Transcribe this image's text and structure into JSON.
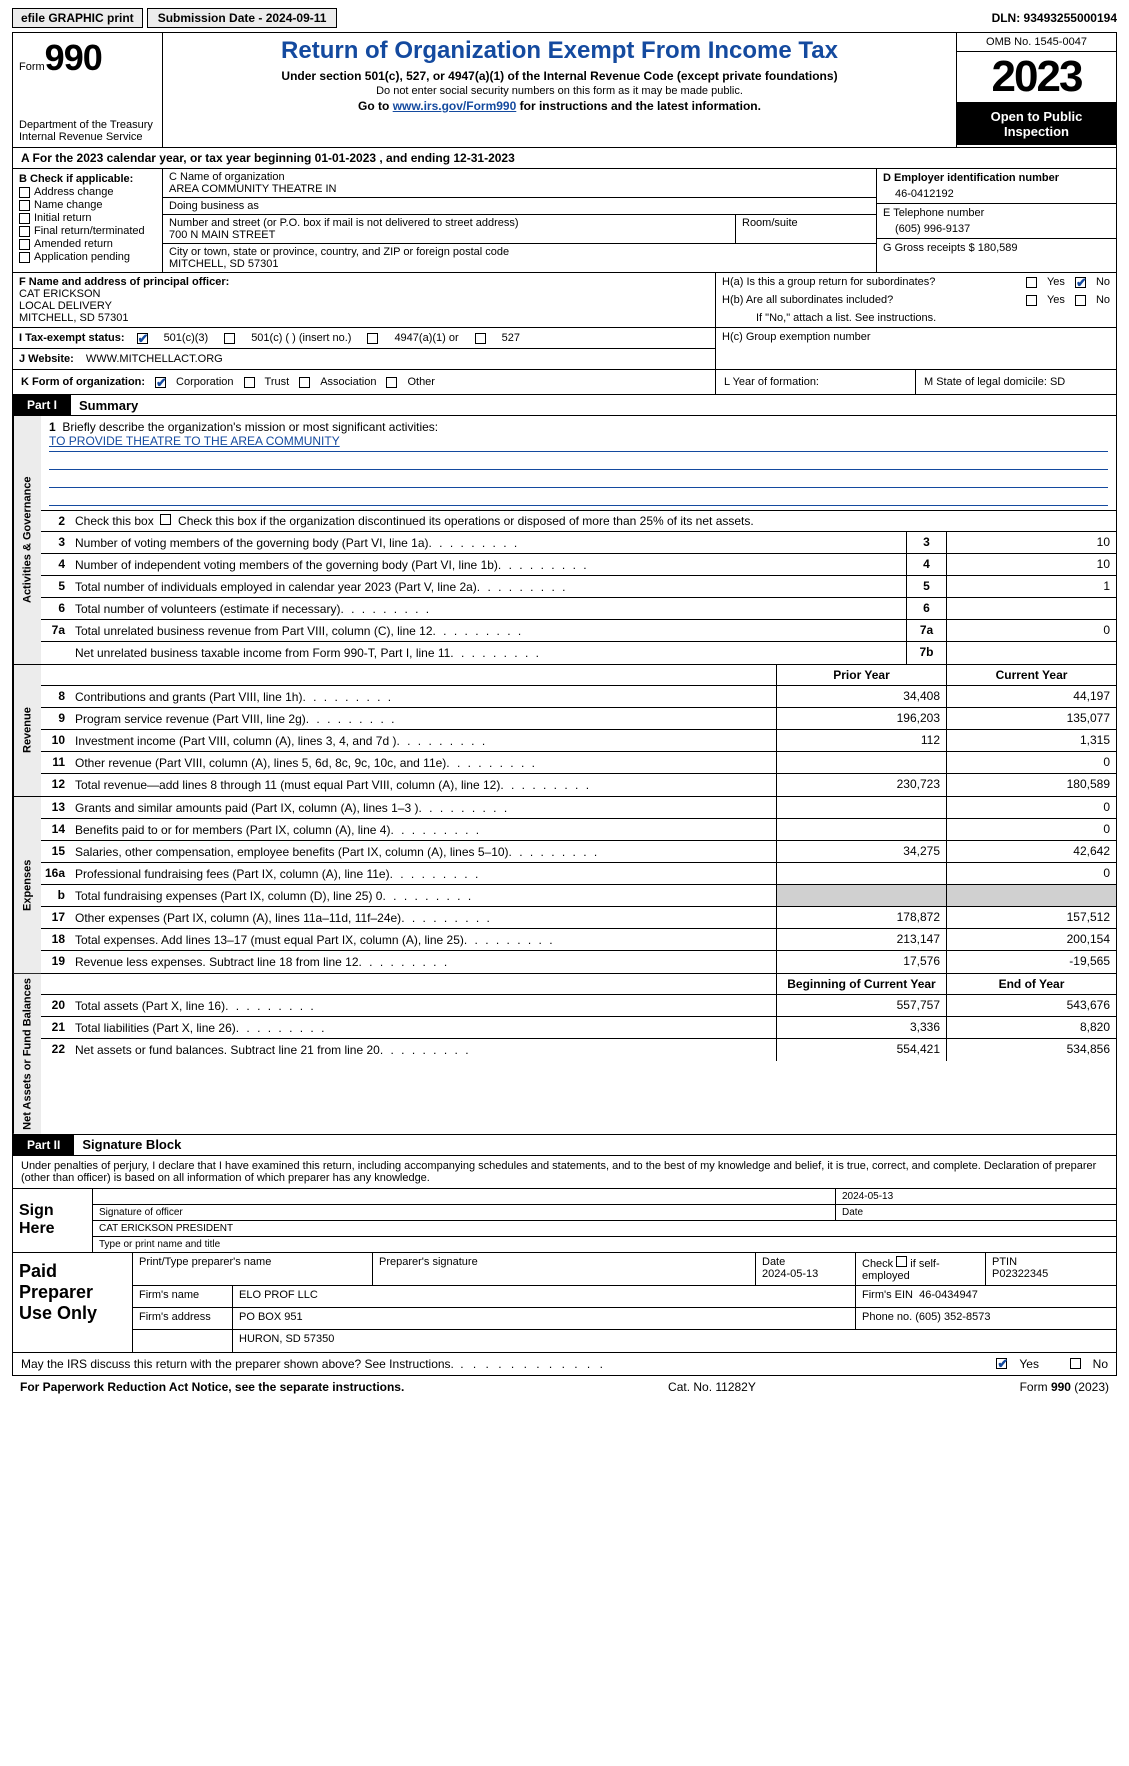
{
  "topbar": {
    "efile": "efile GRAPHIC print",
    "submission": "Submission Date - 2024-09-11",
    "dln": "DLN: 93493255000194"
  },
  "header": {
    "form_word": "Form",
    "form_num": "990",
    "dept": "Department of the Treasury\nInternal Revenue Service",
    "title": "Return of Organization Exempt From Income Tax",
    "subtitle": "Under section 501(c), 527, or 4947(a)(1) of the Internal Revenue Code (except private foundations)",
    "info1": "Do not enter social security numbers on this form as it may be made public.",
    "goto": "Go to ",
    "goto_link": "www.irs.gov/Form990",
    "goto_tail": " for instructions and the latest information.",
    "omb": "OMB No. 1545-0047",
    "year": "2023",
    "open": "Open to Public Inspection"
  },
  "rowA": "A For the 2023 calendar year, or tax year beginning 01-01-2023    , and ending 12-31-2023",
  "boxB": {
    "label": "B Check if applicable:",
    "items": [
      "Address change",
      "Name change",
      "Initial return",
      "Final return/terminated",
      "Amended return",
      "Application pending"
    ]
  },
  "boxC": {
    "name_label": "C Name of organization",
    "name": "AREA COMMUNITY THEATRE IN",
    "dba_label": "Doing business as",
    "dba": "",
    "addr_label": "Number and street (or P.O. box if mail is not delivered to street address)",
    "addr": "700 N MAIN STREET",
    "room_label": "Room/suite",
    "city_label": "City or town, state or province, country, and ZIP or foreign postal code",
    "city": "MITCHELL, SD  57301"
  },
  "boxD": {
    "label": "D Employer identification number",
    "value": "46-0412192"
  },
  "boxE": {
    "label": "E Telephone number",
    "value": "(605) 996-9137"
  },
  "boxG": {
    "label": "G Gross receipts $",
    "value": "180,589"
  },
  "boxF": {
    "label": "F  Name and address of principal officer:",
    "line1": "CAT ERICKSON",
    "line2": "LOCAL DELIVERY",
    "line3": "MITCHELL, SD  57301"
  },
  "boxH": {
    "ha": "H(a)  Is this a group return for subordinates?",
    "hb": "H(b)  Are all subordinates included?",
    "hb_note": "If \"No,\" attach a list. See instructions.",
    "hc": "H(c)  Group exemption number"
  },
  "boxI": {
    "label": "I   Tax-exempt status:",
    "o1": "501(c)(3)",
    "o2": "501(c) (  ) (insert no.)",
    "o3": "4947(a)(1) or",
    "o4": "527"
  },
  "boxJ": {
    "label": "J   Website:",
    "value": "WWW.MITCHELLACT.ORG"
  },
  "boxK": {
    "label": "K Form of organization:",
    "o1": "Corporation",
    "o2": "Trust",
    "o3": "Association",
    "o4": "Other"
  },
  "boxL": "L Year of formation:",
  "boxM": "M State of legal domicile: SD",
  "parts": {
    "p1": "Part I",
    "p1_title": "Summary",
    "p2": "Part II",
    "p2_title": "Signature Block"
  },
  "mission": {
    "q": "Briefly describe the organization's mission or most significant activities:",
    "text": "TO PROVIDE THEATRE TO THE AREA COMMUNITY"
  },
  "line2": "Check this box          if the organization discontinued its operations or disposed of more than 25% of its net assets.",
  "vtabs": {
    "ag": "Activities & Governance",
    "rev": "Revenue",
    "exp": "Expenses",
    "na": "Net Assets or Fund Balances"
  },
  "ag_rows": [
    {
      "n": "3",
      "d": "Number of voting members of the governing body (Part VI, line 1a)",
      "box": "3",
      "v": "10"
    },
    {
      "n": "4",
      "d": "Number of independent voting members of the governing body (Part VI, line 1b)",
      "box": "4",
      "v": "10"
    },
    {
      "n": "5",
      "d": "Total number of individuals employed in calendar year 2023 (Part V, line 2a)",
      "box": "5",
      "v": "1"
    },
    {
      "n": "6",
      "d": "Total number of volunteers (estimate if necessary)",
      "box": "6",
      "v": ""
    },
    {
      "n": "7a",
      "d": "Total unrelated business revenue from Part VIII, column (C), line 12",
      "box": "7a",
      "v": "0"
    },
    {
      "n": "",
      "d": "Net unrelated business taxable income from Form 990-T, Part I, line 11",
      "box": "7b",
      "v": ""
    }
  ],
  "cols": {
    "prior": "Prior Year",
    "current": "Current Year",
    "begin": "Beginning of Current Year",
    "end": "End of Year"
  },
  "rev_rows": [
    {
      "n": "8",
      "d": "Contributions and grants (Part VIII, line 1h)",
      "p": "34,408",
      "c": "44,197"
    },
    {
      "n": "9",
      "d": "Program service revenue (Part VIII, line 2g)",
      "p": "196,203",
      "c": "135,077"
    },
    {
      "n": "10",
      "d": "Investment income (Part VIII, column (A), lines 3, 4, and 7d )",
      "p": "112",
      "c": "1,315"
    },
    {
      "n": "11",
      "d": "Other revenue (Part VIII, column (A), lines 5, 6d, 8c, 9c, 10c, and 11e)",
      "p": "",
      "c": "0"
    },
    {
      "n": "12",
      "d": "Total revenue—add lines 8 through 11 (must equal Part VIII, column (A), line 12)",
      "p": "230,723",
      "c": "180,589"
    }
  ],
  "exp_rows": [
    {
      "n": "13",
      "d": "Grants and similar amounts paid (Part IX, column (A), lines 1–3 )",
      "p": "",
      "c": "0"
    },
    {
      "n": "14",
      "d": "Benefits paid to or for members (Part IX, column (A), line 4)",
      "p": "",
      "c": "0"
    },
    {
      "n": "15",
      "d": "Salaries, other compensation, employee benefits (Part IX, column (A), lines 5–10)",
      "p": "34,275",
      "c": "42,642"
    },
    {
      "n": "16a",
      "d": "Professional fundraising fees (Part IX, column (A), line 11e)",
      "p": "",
      "c": "0"
    },
    {
      "n": "b",
      "d": "Total fundraising expenses (Part IX, column (D), line 25) 0",
      "p": "shade",
      "c": "shade"
    },
    {
      "n": "17",
      "d": "Other expenses (Part IX, column (A), lines 11a–11d, 11f–24e)",
      "p": "178,872",
      "c": "157,512"
    },
    {
      "n": "18",
      "d": "Total expenses. Add lines 13–17 (must equal Part IX, column (A), line 25)",
      "p": "213,147",
      "c": "200,154"
    },
    {
      "n": "19",
      "d": "Revenue less expenses. Subtract line 18 from line 12",
      "p": "17,576",
      "c": "-19,565"
    }
  ],
  "na_rows": [
    {
      "n": "20",
      "d": "Total assets (Part X, line 16)",
      "p": "557,757",
      "c": "543,676"
    },
    {
      "n": "21",
      "d": "Total liabilities (Part X, line 26)",
      "p": "3,336",
      "c": "8,820"
    },
    {
      "n": "22",
      "d": "Net assets or fund balances. Subtract line 21 from line 20",
      "p": "554,421",
      "c": "534,856"
    }
  ],
  "penalty": "Under penalties of perjury, I declare that I have examined this return, including accompanying schedules and statements, and to the best of my knowledge and belief, it is true, correct, and complete. Declaration of preparer (other than officer) is based on all information of which preparer has any knowledge.",
  "sign": {
    "label": "Sign Here",
    "sig_label": "Signature of officer",
    "name": "CAT ERICKSON  PRESIDENT",
    "name_label": "Type or print name and title",
    "date_label": "Date",
    "date": "2024-05-13"
  },
  "prep": {
    "label": "Paid Preparer Use Only",
    "h1": "Print/Type preparer's name",
    "h2": "Preparer's signature",
    "h3": "Date",
    "h3v": "2024-05-13",
    "h4": "Check        if self-employed",
    "h5": "PTIN",
    "h5v": "P02322345",
    "firm_label": "Firm's name",
    "firm": "ELO PROF LLC",
    "ein_label": "Firm's EIN",
    "ein": "46-0434947",
    "addr_label": "Firm's address",
    "addr1": "PO BOX 951",
    "addr2": "HURON, SD  57350",
    "phone_label": "Phone no.",
    "phone": "(605) 352-8573"
  },
  "discuss": "May the IRS discuss this return with the preparer shown above? See Instructions.",
  "yes": "Yes",
  "no": "No",
  "footer": {
    "left": "For Paperwork Reduction Act Notice, see the separate instructions.",
    "center": "Cat. No. 11282Y",
    "right_a": "Form ",
    "right_b": "990",
    "right_c": " (2023)"
  }
}
